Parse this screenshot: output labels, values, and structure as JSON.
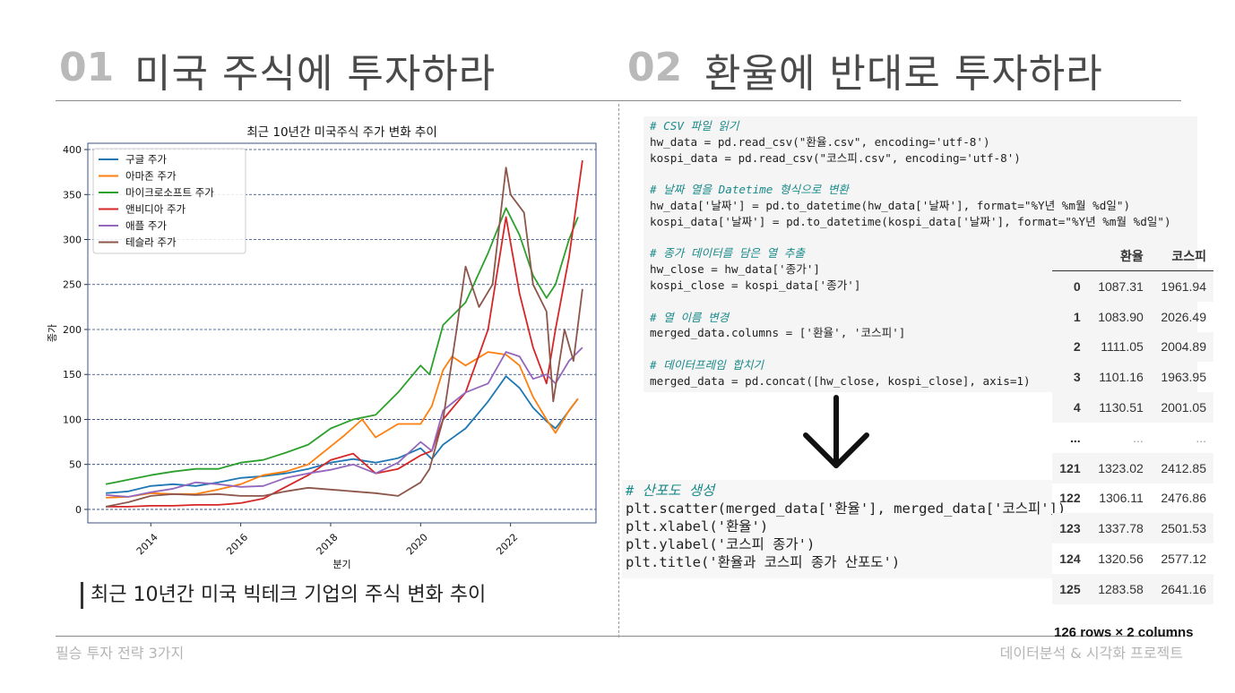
{
  "section1": {
    "number": "01",
    "title": "미국 주식에 투자하라"
  },
  "section2": {
    "number": "02",
    "title": "환율에 반대로 투자하라"
  },
  "caption": "최근 10년간 미국 빅테크 기업의 주식 변화 추이",
  "footer": {
    "left": "필승 투자 전략 3가지",
    "right": "데이터분석 & 시각화 프로젝트"
  },
  "code_block_1": [
    "# CSV 파일 읽기",
    "hw_data = pd.read_csv(\"환율.csv\", encoding='utf-8')",
    "kospi_data = pd.read_csv(\"코스피.csv\", encoding='utf-8')",
    "",
    "# 날짜 열을 Datetime 형식으로 변환",
    "hw_data['날짜'] = pd.to_datetime(hw_data['날짜'], format=\"%Y년 %m월 %d일\")",
    "kospi_data['날짜'] = pd.to_datetime(kospi_data['날짜'], format=\"%Y년 %m월 %d일\")",
    "",
    "# 종가 데이터를 담은 열 추출",
    "hw_close = hw_data['종가']",
    "kospi_close = kospi_data['종가']",
    "",
    "# 열 이름 변경",
    "merged_data.columns = ['환율', '코스피']",
    "",
    "# 데이터프레임 합치기",
    "merged_data = pd.concat([hw_close, kospi_close], axis=1)"
  ],
  "code_block_2": [
    "# 산포도 생성",
    "plt.scatter(merged_data['환율'], merged_data['코스피'])",
    "plt.xlabel('환율')",
    "plt.ylabel('코스피 종가')",
    "plt.title('환율과 코스피 종가 산포도')"
  ],
  "arrow_icon": "arrow-down-icon",
  "dataframe": {
    "columns": [
      "",
      "환율",
      "코스피"
    ],
    "rows": [
      [
        "0",
        "1087.31",
        "1961.94"
      ],
      [
        "1",
        "1083.90",
        "2026.49"
      ],
      [
        "2",
        "1111.05",
        "2004.89"
      ],
      [
        "3",
        "1101.16",
        "1963.95"
      ],
      [
        "4",
        "1130.51",
        "2001.05"
      ],
      [
        "...",
        "...",
        "..."
      ],
      [
        "121",
        "1323.02",
        "2412.85"
      ],
      [
        "122",
        "1306.11",
        "2476.86"
      ],
      [
        "123",
        "1337.78",
        "2501.53"
      ],
      [
        "124",
        "1320.56",
        "2577.12"
      ],
      [
        "125",
        "1283.58",
        "2641.16"
      ]
    ],
    "shape_note": "126 rows × 2 columns"
  },
  "chart_data": {
    "type": "line",
    "title": "최근 10년간 미국주식 주가 변화 추이",
    "xlabel": "분기",
    "ylabel": "종가",
    "xlim": [
      2012.6,
      2023.9
    ],
    "ylim": [
      -15,
      407
    ],
    "xticks": [
      2014,
      2016,
      2018,
      2020,
      2022
    ],
    "yticks": [
      0,
      50,
      100,
      150,
      200,
      250,
      300,
      350,
      400
    ],
    "grid": "horizontal dashed",
    "legend": "top-left",
    "series": [
      {
        "name": "구글 주가",
        "color": "#1f77b4",
        "x": [
          2013.0,
          2013.5,
          2014.0,
          2014.5,
          2015.0,
          2015.5,
          2016.0,
          2016.5,
          2017.0,
          2017.5,
          2018.0,
          2018.5,
          2019.0,
          2019.5,
          2020.0,
          2020.25,
          2020.5,
          2021.0,
          2021.5,
          2021.9,
          2022.2,
          2022.5,
          2022.8,
          2023.0,
          2023.2,
          2023.5
        ],
        "y": [
          18,
          20,
          26,
          28,
          26,
          30,
          35,
          37,
          40,
          45,
          52,
          56,
          52,
          57,
          68,
          56,
          72,
          90,
          120,
          148,
          135,
          113,
          98,
          90,
          103,
          123
        ]
      },
      {
        "name": "아마존 주가",
        "color": "#ff7f0e",
        "x": [
          2013.0,
          2013.5,
          2014.0,
          2014.5,
          2015.0,
          2015.5,
          2016.0,
          2016.5,
          2017.0,
          2017.5,
          2018.0,
          2018.3,
          2018.7,
          2019.0,
          2019.5,
          2020.0,
          2020.25,
          2020.5,
          2020.7,
          2021.0,
          2021.5,
          2021.9,
          2022.2,
          2022.5,
          2022.8,
          2023.0,
          2023.3,
          2023.5
        ],
        "y": [
          13,
          14,
          18,
          17,
          17,
          22,
          28,
          38,
          42,
          50,
          70,
          82,
          100,
          80,
          95,
          95,
          115,
          155,
          170,
          160,
          175,
          172,
          160,
          125,
          100,
          85,
          110,
          123
        ]
      },
      {
        "name": "마이크로소프트 주가",
        "color": "#2ca02c",
        "x": [
          2013.0,
          2013.5,
          2014.0,
          2014.5,
          2015.0,
          2015.5,
          2016.0,
          2016.5,
          2017.0,
          2017.5,
          2018.0,
          2018.5,
          2019.0,
          2019.5,
          2020.0,
          2020.2,
          2020.5,
          2021.0,
          2021.5,
          2021.9,
          2022.2,
          2022.5,
          2022.8,
          2023.0,
          2023.3,
          2023.5
        ],
        "y": [
          28,
          33,
          38,
          42,
          45,
          45,
          52,
          55,
          63,
          72,
          90,
          100,
          105,
          130,
          160,
          150,
          205,
          230,
          285,
          335,
          305,
          260,
          235,
          250,
          300,
          325
        ]
      },
      {
        "name": "앤비디아 주가",
        "color": "#d62728",
        "x": [
          2013.0,
          2013.5,
          2014.0,
          2014.5,
          2015.0,
          2015.5,
          2016.0,
          2016.5,
          2017.0,
          2017.5,
          2018.0,
          2018.5,
          2019.0,
          2019.5,
          2020.0,
          2020.25,
          2020.5,
          2021.0,
          2021.5,
          2021.9,
          2022.2,
          2022.5,
          2022.8,
          2023.0,
          2023.3,
          2023.6
        ],
        "y": [
          3,
          3,
          4,
          4,
          5,
          5,
          7,
          12,
          25,
          38,
          55,
          62,
          40,
          45,
          60,
          65,
          100,
          130,
          200,
          325,
          240,
          180,
          140,
          200,
          280,
          388
        ]
      },
      {
        "name": "애플 주가",
        "color": "#9467bd",
        "x": [
          2013.0,
          2013.5,
          2014.0,
          2014.5,
          2015.0,
          2015.5,
          2016.0,
          2016.5,
          2017.0,
          2017.5,
          2018.0,
          2018.5,
          2019.0,
          2019.5,
          2020.0,
          2020.25,
          2020.5,
          2021.0,
          2021.5,
          2021.9,
          2022.2,
          2022.5,
          2022.8,
          2023.0,
          2023.3,
          2023.6
        ],
        "y": [
          16,
          14,
          19,
          23,
          30,
          28,
          25,
          26,
          35,
          40,
          44,
          50,
          40,
          52,
          75,
          65,
          110,
          130,
          140,
          175,
          170,
          145,
          150,
          140,
          165,
          180
        ]
      },
      {
        "name": "테슬라 주가",
        "color": "#8c564b",
        "x": [
          2013.0,
          2013.5,
          2014.0,
          2014.5,
          2015.0,
          2015.5,
          2016.0,
          2016.5,
          2017.0,
          2017.5,
          2018.0,
          2018.5,
          2019.0,
          2019.5,
          2020.0,
          2020.2,
          2020.5,
          2020.8,
          2021.0,
          2021.3,
          2021.6,
          2021.9,
          2022.0,
          2022.3,
          2022.5,
          2022.8,
          2022.95,
          2023.2,
          2023.4,
          2023.6
        ],
        "y": [
          3,
          8,
          15,
          17,
          16,
          17,
          15,
          15,
          20,
          24,
          22,
          20,
          18,
          15,
          30,
          45,
          100,
          200,
          270,
          225,
          250,
          380,
          350,
          330,
          250,
          220,
          120,
          200,
          165,
          245
        ]
      }
    ]
  }
}
